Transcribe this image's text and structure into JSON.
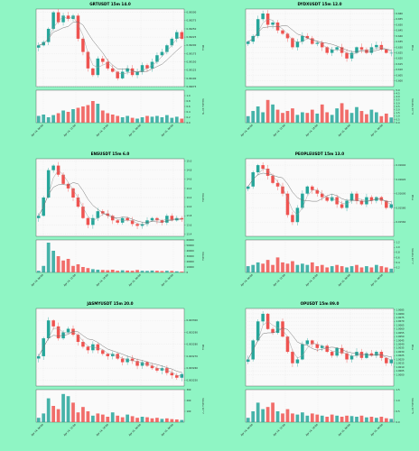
{
  "page": {
    "background": "#8ff5c4",
    "up_color": "#26a69a",
    "down_color": "#ef5350"
  },
  "chart_data": [
    {
      "type": "candlestick",
      "title": "GRTUSDT 15m 14.0",
      "ylabel": "Price",
      "vlabel": "Volume  10^6",
      "ylim": [
        0.09075,
        0.0931
      ],
      "yticks": [
        "0.09300",
        "0.09275",
        "0.09250",
        "0.09225",
        "0.09200",
        "0.09175",
        "0.09150",
        "0.09125",
        "0.09100",
        "0.09075"
      ],
      "vlim": [
        0,
        1.2
      ],
      "vticks": [
        "1.0",
        "0.8",
        "0.6",
        "0.4",
        "0.2",
        "0.0"
      ],
      "xticks": [
        "Apr 14, 06:00",
        "Apr 14, 12:00",
        "Apr 14, 18:00",
        "Apr 15, 00:00",
        "Apr 15, 06:00"
      ],
      "close": [
        0.092,
        0.0921,
        0.0925,
        0.093,
        0.0927,
        0.0929,
        0.0928,
        0.0929,
        0.0922,
        0.0918,
        0.0913,
        0.0911,
        0.0916,
        0.0915,
        0.0913,
        0.0912,
        0.091,
        0.0912,
        0.0913,
        0.0911,
        0.0912,
        0.0914,
        0.0913,
        0.0915,
        0.0917,
        0.0918,
        0.092,
        0.0922,
        0.0924,
        0.0922
      ],
      "volume": [
        0.25,
        0.3,
        0.2,
        0.28,
        0.35,
        0.45,
        0.4,
        0.5,
        0.55,
        0.6,
        0.65,
        0.8,
        0.7,
        0.45,
        0.35,
        0.3,
        0.25,
        0.2,
        0.25,
        0.18,
        0.15,
        0.2,
        0.25,
        0.22,
        0.25,
        0.2,
        0.28,
        0.18,
        0.22,
        0.15
      ]
    },
    {
      "type": "candlestick",
      "title": "DYDXUSDT 15m 12.0",
      "ylabel": "Price",
      "vlabel": "Volume  10^4",
      "ylim": [
        0.595,
        0.664
      ],
      "yticks": [
        "0.660",
        "0.655",
        "0.650",
        "0.645",
        "0.640",
        "0.635",
        "0.630",
        "0.625",
        "0.620",
        "0.615",
        "0.610",
        "0.605",
        "0.600"
      ],
      "vlim": [
        0,
        5.0
      ],
      "vticks": [
        "5.0",
        "4.5",
        "4.0",
        "3.5",
        "3.0",
        "2.5",
        "2.0",
        "1.5",
        "1.0",
        "0.5",
        "0.0"
      ],
      "xticks": [
        "Apr 14, 06:00",
        "Apr 14, 12:00",
        "Apr 14, 18:00",
        "Apr 15, 00:00",
        "Apr 15, 06:00"
      ],
      "close": [
        0.635,
        0.64,
        0.655,
        0.66,
        0.65,
        0.652,
        0.645,
        0.642,
        0.638,
        0.63,
        0.635,
        0.64,
        0.638,
        0.633,
        0.634,
        0.63,
        0.625,
        0.628,
        0.63,
        0.625,
        0.62,
        0.625,
        0.63,
        0.628,
        0.625,
        0.63,
        0.632,
        0.628,
        0.625,
        0.625
      ],
      "volume": [
        1.0,
        1.8,
        2.5,
        1.6,
        3.5,
        2.8,
        2.0,
        1.5,
        1.8,
        2.2,
        1.2,
        1.6,
        1.5,
        2.0,
        1.4,
        2.8,
        1.6,
        1.2,
        2.2,
        3.0,
        2.0,
        1.5,
        2.4,
        1.8,
        1.3,
        2.0,
        1.6,
        1.0,
        1.4,
        0.8
      ]
    },
    {
      "type": "candlestick",
      "title": "ENSUSDT 15m 6.0",
      "ylabel": "Volume",
      "vlabel": "Volume",
      "ylim": [
        13.35,
        15.05
      ],
      "yticks": [
        "15.0",
        "14.8",
        "14.6",
        "14.4",
        "14.2",
        "14.0",
        "13.8",
        "13.6",
        "13.4"
      ],
      "vlim": [
        0,
        60000
      ],
      "vticks": [
        "60000",
        "50000",
        "40000",
        "30000",
        "20000",
        "10000",
        "0"
      ],
      "xticks": [
        "Apr 14, 06:00",
        "Apr 14, 12:00",
        "Apr 14, 18:00",
        "Apr 15, 00:00",
        "Apr 15, 06:00"
      ],
      "close": [
        13.8,
        14.2,
        14.8,
        14.9,
        14.7,
        14.5,
        14.4,
        14.2,
        14.0,
        13.75,
        13.6,
        13.75,
        13.9,
        13.85,
        13.8,
        13.7,
        13.65,
        13.75,
        13.7,
        13.62,
        13.58,
        13.62,
        13.7,
        13.75,
        13.7,
        13.65,
        13.8,
        13.7,
        13.75,
        13.72
      ],
      "volume": [
        3000,
        12000,
        55000,
        40000,
        30000,
        22000,
        25000,
        12000,
        15000,
        10000,
        8000,
        6000,
        5000,
        4500,
        4000,
        5000,
        3000,
        4000,
        3500,
        3000,
        4500,
        3000,
        2800,
        3500,
        3000,
        2500,
        3000,
        2800,
        2000,
        1500
      ]
    },
    {
      "type": "candlestick",
      "title": "PEOPLEUSDT 15m 13.0",
      "ylabel": "Price",
      "vlabel": "Volume  10^7",
      "ylim": [
        0.0154,
        0.01649
      ],
      "yticks": [
        "0.01640",
        "0.01620",
        "0.01600",
        "0.01580",
        "0.01560"
      ],
      "vlim": [
        0,
        1.3
      ],
      "vticks": [
        "1.2",
        "1.0",
        "0.8",
        "0.6",
        "0.4",
        "0.2"
      ],
      "xticks": [
        "Apr 14, 06:00",
        "Apr 14, 12:00",
        "Apr 14, 18:00",
        "Apr 15, 00:00",
        "Apr 15, 06:00"
      ],
      "close": [
        0.0161,
        0.0163,
        0.0164,
        0.01635,
        0.01625,
        0.01615,
        0.0161,
        0.016,
        0.0157,
        0.0156,
        0.0158,
        0.016,
        0.0161,
        0.01605,
        0.016,
        0.01595,
        0.0159,
        0.01595,
        0.01585,
        0.0158,
        0.0159,
        0.016,
        0.0159,
        0.01585,
        0.01595,
        0.0159,
        0.01595,
        0.0159,
        0.0158,
        0.01585
      ],
      "volume": [
        0.25,
        0.3,
        0.4,
        0.35,
        0.5,
        0.3,
        0.6,
        0.4,
        0.35,
        0.45,
        0.3,
        0.35,
        0.3,
        0.4,
        0.25,
        0.3,
        0.2,
        0.25,
        0.3,
        0.25,
        0.2,
        0.25,
        0.3,
        0.2,
        0.25,
        0.2,
        0.3,
        0.25,
        0.2,
        0.15
      ]
    },
    {
      "type": "candlestick",
      "title": "JASMYUSDT 15m 20.0",
      "ylabel": "Price",
      "vlabel": "Volume  10^7",
      "ylim": [
        0.003245,
        0.00331
      ],
      "yticks": [
        "0.003300",
        "0.003290",
        "0.003280",
        "0.003270",
        "0.003260",
        "0.003250"
      ],
      "vlim": [
        0,
        300
      ],
      "vticks": [
        "300",
        "200",
        "100"
      ],
      "xticks": [
        "Apr 14, 06:00",
        "Apr 14, 12:00",
        "Apr 14, 18:00",
        "Apr 15, 00:00",
        "Apr 15, 06:00"
      ],
      "close": [
        0.00327,
        0.003285,
        0.0033,
        0.003295,
        0.003285,
        0.00329,
        0.003293,
        0.003288,
        0.003282,
        0.003278,
        0.003275,
        0.00328,
        0.003275,
        0.003272,
        0.00327,
        0.003272,
        0.003268,
        0.003265,
        0.003268,
        0.003266,
        0.003262,
        0.003265,
        0.003262,
        0.00326,
        0.003258,
        0.00326,
        0.003256,
        0.003254,
        0.003252,
        0.003255
      ],
      "volume": [
        40,
        80,
        220,
        150,
        120,
        260,
        240,
        180,
        90,
        140,
        100,
        60,
        80,
        70,
        50,
        90,
        60,
        45,
        70,
        55,
        40,
        50,
        45,
        35,
        40,
        30,
        35,
        28,
        25,
        20
      ]
    },
    {
      "type": "candlestick",
      "title": "OPUSDT 15m 89.0",
      "ylabel": "Price",
      "vlabel": "Volume  10^5",
      "ylim": [
        0.9985,
        1.0087
      ],
      "yticks": [
        "1.0085",
        "1.0080",
        "1.0075",
        "1.0070",
        "1.0065",
        "1.0060",
        "1.0055",
        "1.0050",
        "1.0045",
        "1.0040",
        "1.0035",
        "1.0030",
        "1.0025",
        "1.0020",
        "1.0015",
        "1.0010",
        "1.0005",
        "1.0000"
      ],
      "vlim": [
        0,
        1.5
      ],
      "vticks": [
        "1.5",
        "1.0",
        "0.5",
        "0.0"
      ],
      "xticks": [
        "Apr 14, 06:00",
        "Apr 14, 12:00",
        "Apr 14, 18:00",
        "Apr 15, 00:00",
        "Apr 15, 06:00"
      ],
      "close": [
        1.002,
        1.0045,
        1.007,
        1.008,
        1.006,
        1.0055,
        1.007,
        1.005,
        1.003,
        1.0015,
        1.002,
        1.004,
        1.0045,
        1.004,
        1.0035,
        1.0038,
        1.003,
        1.0025,
        1.0035,
        1.0028,
        1.002,
        1.0025,
        1.003,
        1.0022,
        1.0028,
        1.0025,
        1.003,
        1.0022,
        1.0015,
        1.002
      ],
      "volume": [
        0.2,
        0.5,
        0.9,
        0.6,
        0.7,
        0.9,
        0.5,
        0.4,
        0.6,
        0.4,
        0.35,
        0.45,
        0.3,
        0.4,
        0.35,
        0.3,
        0.25,
        0.35,
        0.3,
        0.25,
        0.3,
        0.28,
        0.25,
        0.3,
        0.22,
        0.25,
        0.2,
        0.25,
        0.18,
        0.15
      ]
    }
  ]
}
